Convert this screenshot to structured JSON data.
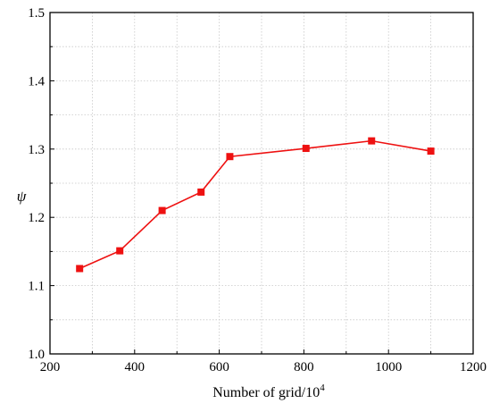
{
  "chart_data": {
    "type": "line",
    "title": "",
    "xlabel": "Number of grid/10",
    "xlabel_superscript": "4",
    "ylabel": "ψ",
    "xlim": [
      200,
      1200
    ],
    "ylim": [
      1.0,
      1.5
    ],
    "x_ticks": [
      200,
      400,
      600,
      800,
      1000,
      1200
    ],
    "x_tick_labels": [
      "200",
      "400",
      "600",
      "800",
      "1000",
      "1200"
    ],
    "y_ticks": [
      1.0,
      1.1,
      1.2,
      1.3,
      1.4,
      1.5
    ],
    "y_tick_labels": [
      "1.0",
      "1.1",
      "1.2",
      "1.3",
      "1.4",
      "1.5"
    ],
    "grid": true,
    "legend": "none",
    "series": [
      {
        "color": "#ee1111",
        "marker": "square",
        "x": [
          270,
          365,
          465,
          557,
          625,
          805,
          960,
          1100
        ],
        "y": [
          1.125,
          1.151,
          1.21,
          1.237,
          1.289,
          1.301,
          1.312,
          1.297
        ]
      }
    ]
  }
}
